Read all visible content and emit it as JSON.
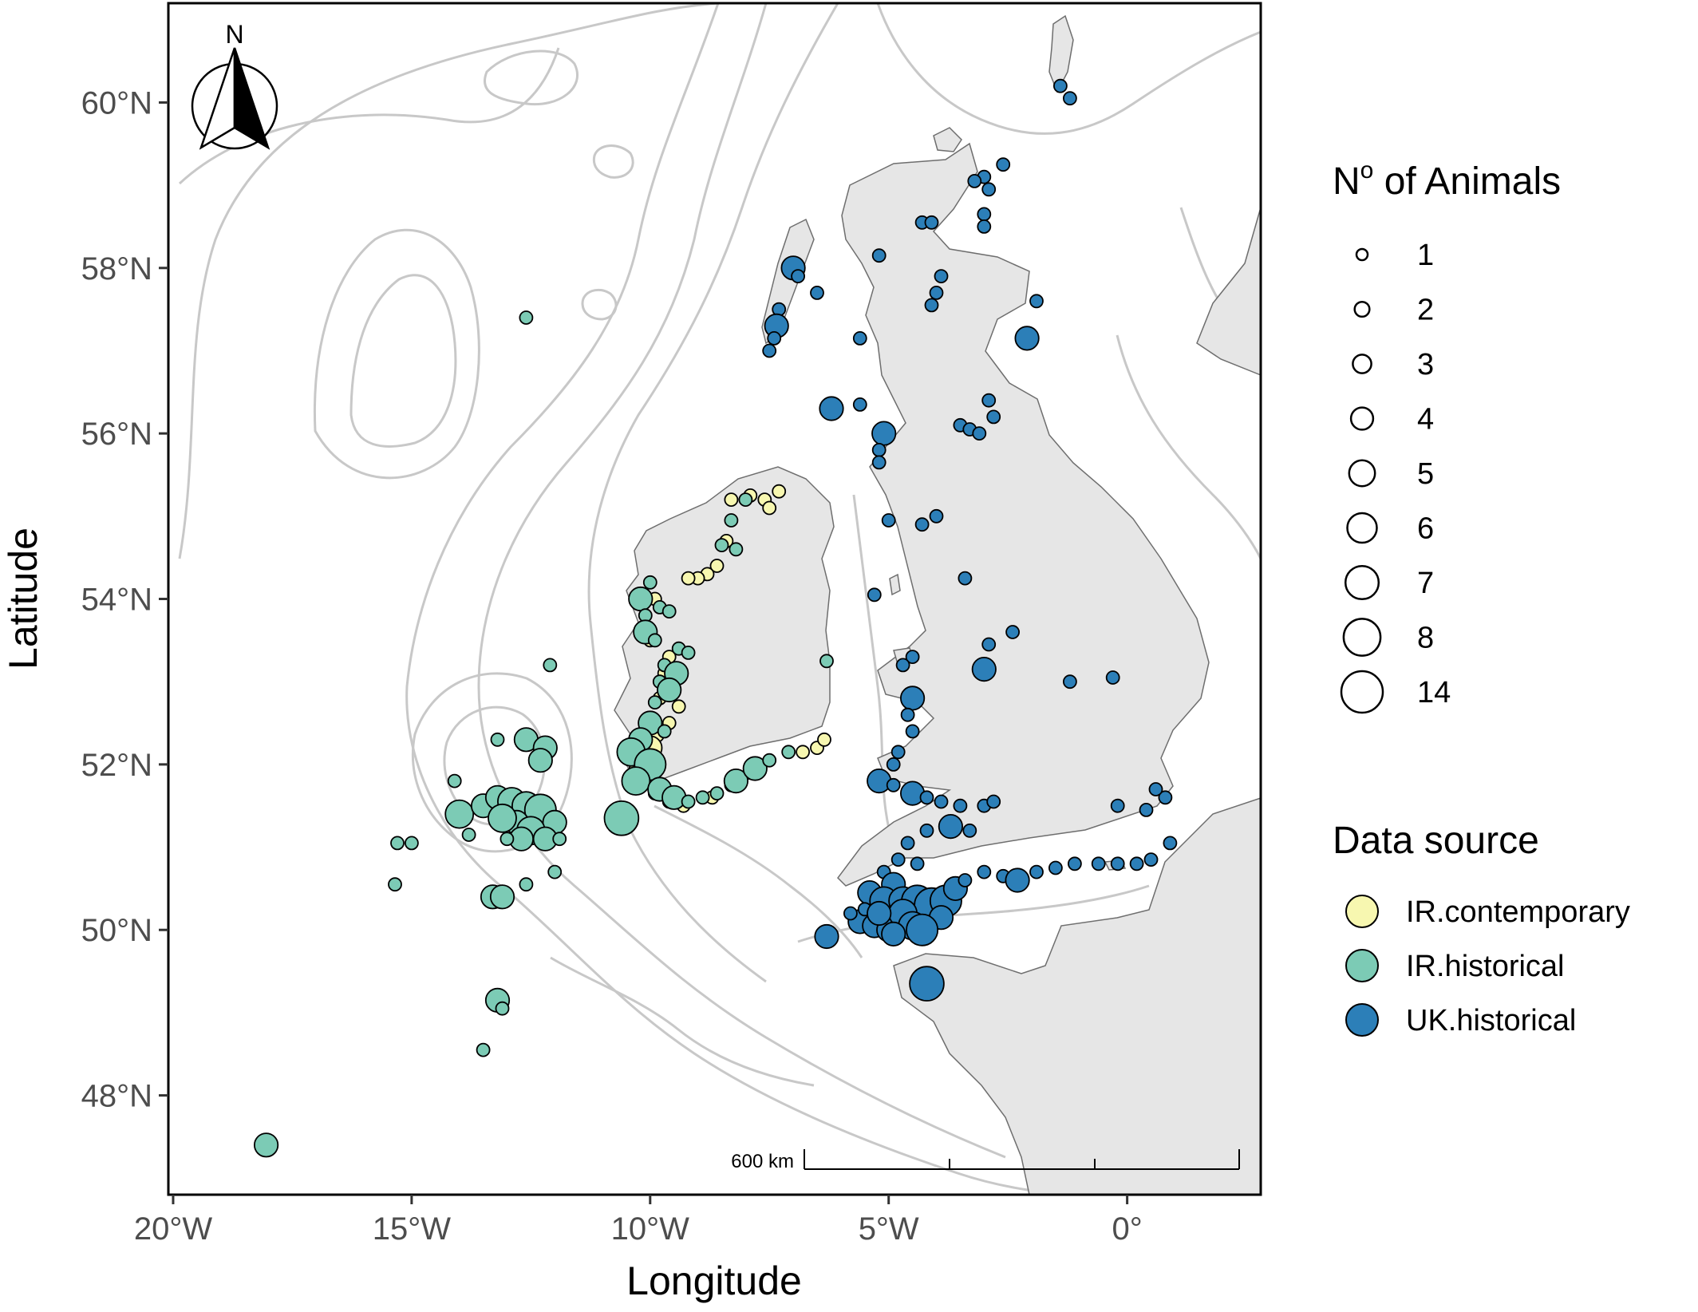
{
  "chart_data": {
    "type": "scatter",
    "xlabel": "Longitude",
    "ylabel": "Latitude",
    "xlim": [
      -20.1,
      2.8
    ],
    "ylim": [
      46.8,
      61.2
    ],
    "x_ticks": [
      {
        "value": -20,
        "label": "20°W"
      },
      {
        "value": -15,
        "label": "15°W"
      },
      {
        "value": -10,
        "label": "10°W"
      },
      {
        "value": -5,
        "label": "5°W"
      },
      {
        "value": 0,
        "label": "0°"
      }
    ],
    "y_ticks": [
      {
        "value": 48,
        "label": "48°N"
      },
      {
        "value": 50,
        "label": "50°N"
      },
      {
        "value": 52,
        "label": "52°N"
      },
      {
        "value": 54,
        "label": "54°N"
      },
      {
        "value": 56,
        "label": "56°N"
      },
      {
        "value": 58,
        "label": "58°N"
      },
      {
        "value": 60,
        "label": "60°N"
      }
    ],
    "grid": false,
    "legend_position": "right",
    "size_legend": {
      "title_main": "N",
      "title_sup": "o",
      "title_rest": " of Animals",
      "values": [
        "1",
        "2",
        "3",
        "4",
        "5",
        "6",
        "7",
        "8",
        "14"
      ]
    },
    "color_legend": {
      "title": "Data source",
      "items": [
        {
          "label": "IR.contemporary",
          "color": "#f7f7b0"
        },
        {
          "label": "IR.historical",
          "color": "#7ccbb5"
        },
        {
          "label": "UK.historical",
          "color": "#2c7fb8"
        }
      ]
    },
    "land_color": "#e6e6e6",
    "contour_color": "#c8c8c8",
    "scale_bar_label": "600 km",
    "north_label": "N",
    "series": [
      {
        "name": "IR.contemporary",
        "color": "#f7f7b0",
        "points": [
          [
            -7.3,
            55.3,
            1
          ],
          [
            -7.6,
            55.2,
            1
          ],
          [
            -7.9,
            55.25,
            1
          ],
          [
            -8.3,
            55.2,
            1
          ],
          [
            -7.5,
            55.1,
            1
          ],
          [
            -8.4,
            54.7,
            1
          ],
          [
            -8.6,
            54.4,
            1
          ],
          [
            -8.8,
            54.3,
            1
          ],
          [
            -9.0,
            54.25,
            1
          ],
          [
            -9.2,
            54.25,
            1
          ],
          [
            -9.9,
            54.0,
            1
          ],
          [
            -10.0,
            53.5,
            1
          ],
          [
            -9.6,
            53.3,
            1
          ],
          [
            -9.7,
            53.1,
            1
          ],
          [
            -9.5,
            52.9,
            1
          ],
          [
            -9.8,
            52.8,
            1
          ],
          [
            -9.4,
            52.7,
            1
          ],
          [
            -9.6,
            52.5,
            1
          ],
          [
            -9.85,
            52.35,
            1
          ],
          [
            -10.0,
            52.2,
            2
          ],
          [
            -10.2,
            52.1,
            1
          ],
          [
            -10.3,
            51.95,
            1
          ],
          [
            -10.1,
            51.8,
            1
          ],
          [
            -9.9,
            51.65,
            1
          ],
          [
            -9.6,
            51.55,
            1
          ],
          [
            -9.3,
            51.5,
            1
          ],
          [
            -8.7,
            51.6,
            1
          ],
          [
            -8.3,
            51.75,
            1
          ],
          [
            -7.9,
            51.9,
            1
          ],
          [
            -6.8,
            52.15,
            1
          ],
          [
            -6.5,
            52.2,
            1
          ],
          [
            -6.35,
            52.3,
            1
          ],
          [
            -9.9,
            51.9,
            1
          ],
          [
            -10.2,
            52.2,
            1
          ]
        ]
      },
      {
        "name": "IR.historical",
        "color": "#7ccbb5",
        "points": [
          [
            -12.6,
            57.4,
            1
          ],
          [
            -8.0,
            55.2,
            1
          ],
          [
            -8.3,
            54.95,
            1
          ],
          [
            -8.5,
            54.65,
            1
          ],
          [
            -8.2,
            54.6,
            1
          ],
          [
            -10.0,
            54.2,
            1
          ],
          [
            -10.2,
            54.0,
            2
          ],
          [
            -10.1,
            53.8,
            1
          ],
          [
            -9.8,
            53.9,
            1
          ],
          [
            -9.6,
            53.85,
            1
          ],
          [
            -10.1,
            53.6,
            2
          ],
          [
            -9.9,
            53.5,
            1
          ],
          [
            -9.4,
            53.4,
            1
          ],
          [
            -9.2,
            53.35,
            1
          ],
          [
            -9.7,
            53.2,
            1
          ],
          [
            -9.45,
            53.1,
            2
          ],
          [
            -9.8,
            53.0,
            1
          ],
          [
            -9.6,
            52.9,
            2
          ],
          [
            -9.9,
            52.75,
            1
          ],
          [
            -10.0,
            52.5,
            2
          ],
          [
            -9.7,
            52.4,
            1
          ],
          [
            -10.2,
            52.3,
            2
          ],
          [
            -10.4,
            52.15,
            3
          ],
          [
            -10.0,
            52.0,
            4
          ],
          [
            -10.3,
            51.8,
            3
          ],
          [
            -9.8,
            51.7,
            2
          ],
          [
            -9.5,
            51.6,
            2
          ],
          [
            -9.2,
            51.55,
            1
          ],
          [
            -8.9,
            51.6,
            1
          ],
          [
            -8.6,
            51.65,
            1
          ],
          [
            -8.2,
            51.8,
            2
          ],
          [
            -7.8,
            51.95,
            2
          ],
          [
            -7.5,
            52.05,
            1
          ],
          [
            -7.1,
            52.15,
            1
          ],
          [
            -6.3,
            53.25,
            1
          ],
          [
            -12.1,
            53.2,
            1
          ],
          [
            -12.6,
            52.3,
            2
          ],
          [
            -12.2,
            52.2,
            2
          ],
          [
            -12.3,
            52.05,
            2
          ],
          [
            -13.2,
            52.3,
            1
          ],
          [
            -14.1,
            51.8,
            1
          ],
          [
            -14.0,
            51.4,
            3
          ],
          [
            -13.5,
            51.5,
            2
          ],
          [
            -13.2,
            51.6,
            2
          ],
          [
            -12.9,
            51.55,
            3
          ],
          [
            -12.6,
            51.5,
            3
          ],
          [
            -12.3,
            51.45,
            4
          ],
          [
            -12.0,
            51.3,
            2
          ],
          [
            -12.8,
            51.3,
            2
          ],
          [
            -13.1,
            51.35,
            3
          ],
          [
            -12.5,
            51.2,
            3
          ],
          [
            -12.2,
            51.1,
            2
          ],
          [
            -11.9,
            51.1,
            1
          ],
          [
            -12.7,
            51.1,
            2
          ],
          [
            -13.0,
            51.1,
            1
          ],
          [
            -13.8,
            51.15,
            1
          ],
          [
            -15.3,
            51.05,
            1
          ],
          [
            -15.0,
            51.05,
            1
          ],
          [
            -12.0,
            50.7,
            1
          ],
          [
            -13.3,
            50.4,
            2
          ],
          [
            -13.1,
            50.4,
            2
          ],
          [
            -12.6,
            50.55,
            1
          ],
          [
            -15.35,
            50.55,
            1
          ],
          [
            -13.2,
            49.15,
            2
          ],
          [
            -13.1,
            49.05,
            1
          ],
          [
            -13.5,
            48.55,
            1
          ],
          [
            -18.05,
            47.4,
            2
          ],
          [
            -10.6,
            51.35,
            5
          ]
        ]
      },
      {
        "name": "UK.historical",
        "color": "#2c7fb8",
        "points": [
          [
            -1.4,
            60.2,
            1
          ],
          [
            -1.2,
            60.05,
            1
          ],
          [
            -3.0,
            59.1,
            1
          ],
          [
            -2.6,
            59.25,
            1
          ],
          [
            -3.2,
            59.05,
            1
          ],
          [
            -2.9,
            58.95,
            1
          ],
          [
            -3.0,
            58.65,
            1
          ],
          [
            -3.0,
            58.5,
            1
          ],
          [
            -4.3,
            58.55,
            1
          ],
          [
            -4.1,
            58.55,
            1
          ],
          [
            -5.2,
            58.15,
            1
          ],
          [
            -3.9,
            57.9,
            1
          ],
          [
            -4.0,
            57.7,
            1
          ],
          [
            -4.1,
            57.55,
            1
          ],
          [
            -1.9,
            57.6,
            1
          ],
          [
            -2.1,
            57.15,
            2
          ],
          [
            -6.5,
            57.7,
            1
          ],
          [
            -7.0,
            58.0,
            2
          ],
          [
            -6.9,
            57.9,
            1
          ],
          [
            -7.3,
            57.5,
            1
          ],
          [
            -7.35,
            57.3,
            2
          ],
          [
            -7.4,
            57.15,
            1
          ],
          [
            -7.5,
            57.0,
            1
          ],
          [
            -5.6,
            57.15,
            1
          ],
          [
            -6.2,
            56.3,
            2
          ],
          [
            -5.1,
            56.0,
            2
          ],
          [
            -5.2,
            55.8,
            1
          ],
          [
            -5.2,
            55.65,
            1
          ],
          [
            -5.6,
            56.35,
            1
          ],
          [
            -2.9,
            56.4,
            1
          ],
          [
            -2.8,
            56.2,
            1
          ],
          [
            -3.5,
            56.1,
            1
          ],
          [
            -3.3,
            56.05,
            1
          ],
          [
            -3.1,
            56.0,
            1
          ],
          [
            -5.0,
            54.95,
            1
          ],
          [
            -4.3,
            54.9,
            1
          ],
          [
            -4.0,
            55.0,
            1
          ],
          [
            -5.3,
            54.05,
            1
          ],
          [
            -3.4,
            54.25,
            1
          ],
          [
            -2.9,
            53.45,
            1
          ],
          [
            -2.4,
            53.6,
            1
          ],
          [
            -3.0,
            53.15,
            2
          ],
          [
            -1.2,
            53.0,
            1
          ],
          [
            -0.3,
            53.05,
            1
          ],
          [
            -4.5,
            53.3,
            1
          ],
          [
            -4.7,
            53.2,
            1
          ],
          [
            -4.5,
            52.8,
            2
          ],
          [
            -4.6,
            52.6,
            1
          ],
          [
            -4.5,
            52.4,
            1
          ],
          [
            -4.8,
            52.15,
            1
          ],
          [
            -4.9,
            52.0,
            1
          ],
          [
            -5.2,
            51.8,
            2
          ],
          [
            -4.9,
            51.75,
            1
          ],
          [
            -4.5,
            51.65,
            2
          ],
          [
            -4.2,
            51.6,
            1
          ],
          [
            -3.9,
            51.55,
            1
          ],
          [
            -3.5,
            51.5,
            1
          ],
          [
            -3.0,
            51.5,
            1
          ],
          [
            -2.8,
            51.55,
            1
          ],
          [
            -3.3,
            51.2,
            1
          ],
          [
            -3.7,
            51.25,
            2
          ],
          [
            -4.2,
            51.2,
            1
          ],
          [
            -4.6,
            51.05,
            1
          ],
          [
            -4.8,
            50.85,
            1
          ],
          [
            -4.4,
            50.8,
            1
          ],
          [
            -5.1,
            50.7,
            1
          ],
          [
            -4.9,
            50.55,
            2
          ],
          [
            -5.4,
            50.45,
            2
          ],
          [
            -5.1,
            50.35,
            3
          ],
          [
            -4.7,
            50.35,
            3
          ],
          [
            -4.4,
            50.35,
            4
          ],
          [
            -4.1,
            50.3,
            5
          ],
          [
            -3.8,
            50.35,
            4
          ],
          [
            -3.6,
            50.5,
            2
          ],
          [
            -3.4,
            50.6,
            1
          ],
          [
            -3.0,
            50.7,
            1
          ],
          [
            -2.6,
            50.65,
            1
          ],
          [
            -2.3,
            50.6,
            2
          ],
          [
            -1.9,
            50.7,
            1
          ],
          [
            -1.5,
            50.75,
            1
          ],
          [
            -1.1,
            50.8,
            1
          ],
          [
            -0.6,
            50.8,
            1
          ],
          [
            -0.2,
            50.8,
            1
          ],
          [
            0.2,
            50.8,
            1
          ],
          [
            0.5,
            50.85,
            1
          ],
          [
            0.9,
            51.05,
            1
          ],
          [
            0.8,
            51.6,
            1
          ],
          [
            0.6,
            51.7,
            1
          ],
          [
            0.4,
            51.45,
            1
          ],
          [
            -0.2,
            51.5,
            1
          ],
          [
            -5.6,
            50.1,
            2
          ],
          [
            -5.3,
            50.05,
            2
          ],
          [
            -5.0,
            50.0,
            2
          ],
          [
            -4.7,
            50.2,
            3
          ],
          [
            -6.3,
            49.92,
            2
          ],
          [
            -4.2,
            49.35,
            5
          ],
          [
            -4.5,
            50.05,
            3
          ],
          [
            -5.8,
            50.2,
            1
          ],
          [
            -5.5,
            50.25,
            1
          ],
          [
            -3.9,
            50.15,
            2
          ],
          [
            -4.9,
            49.95,
            2
          ],
          [
            -5.2,
            50.2,
            2
          ],
          [
            -4.3,
            50.0,
            4
          ]
        ]
      }
    ]
  }
}
